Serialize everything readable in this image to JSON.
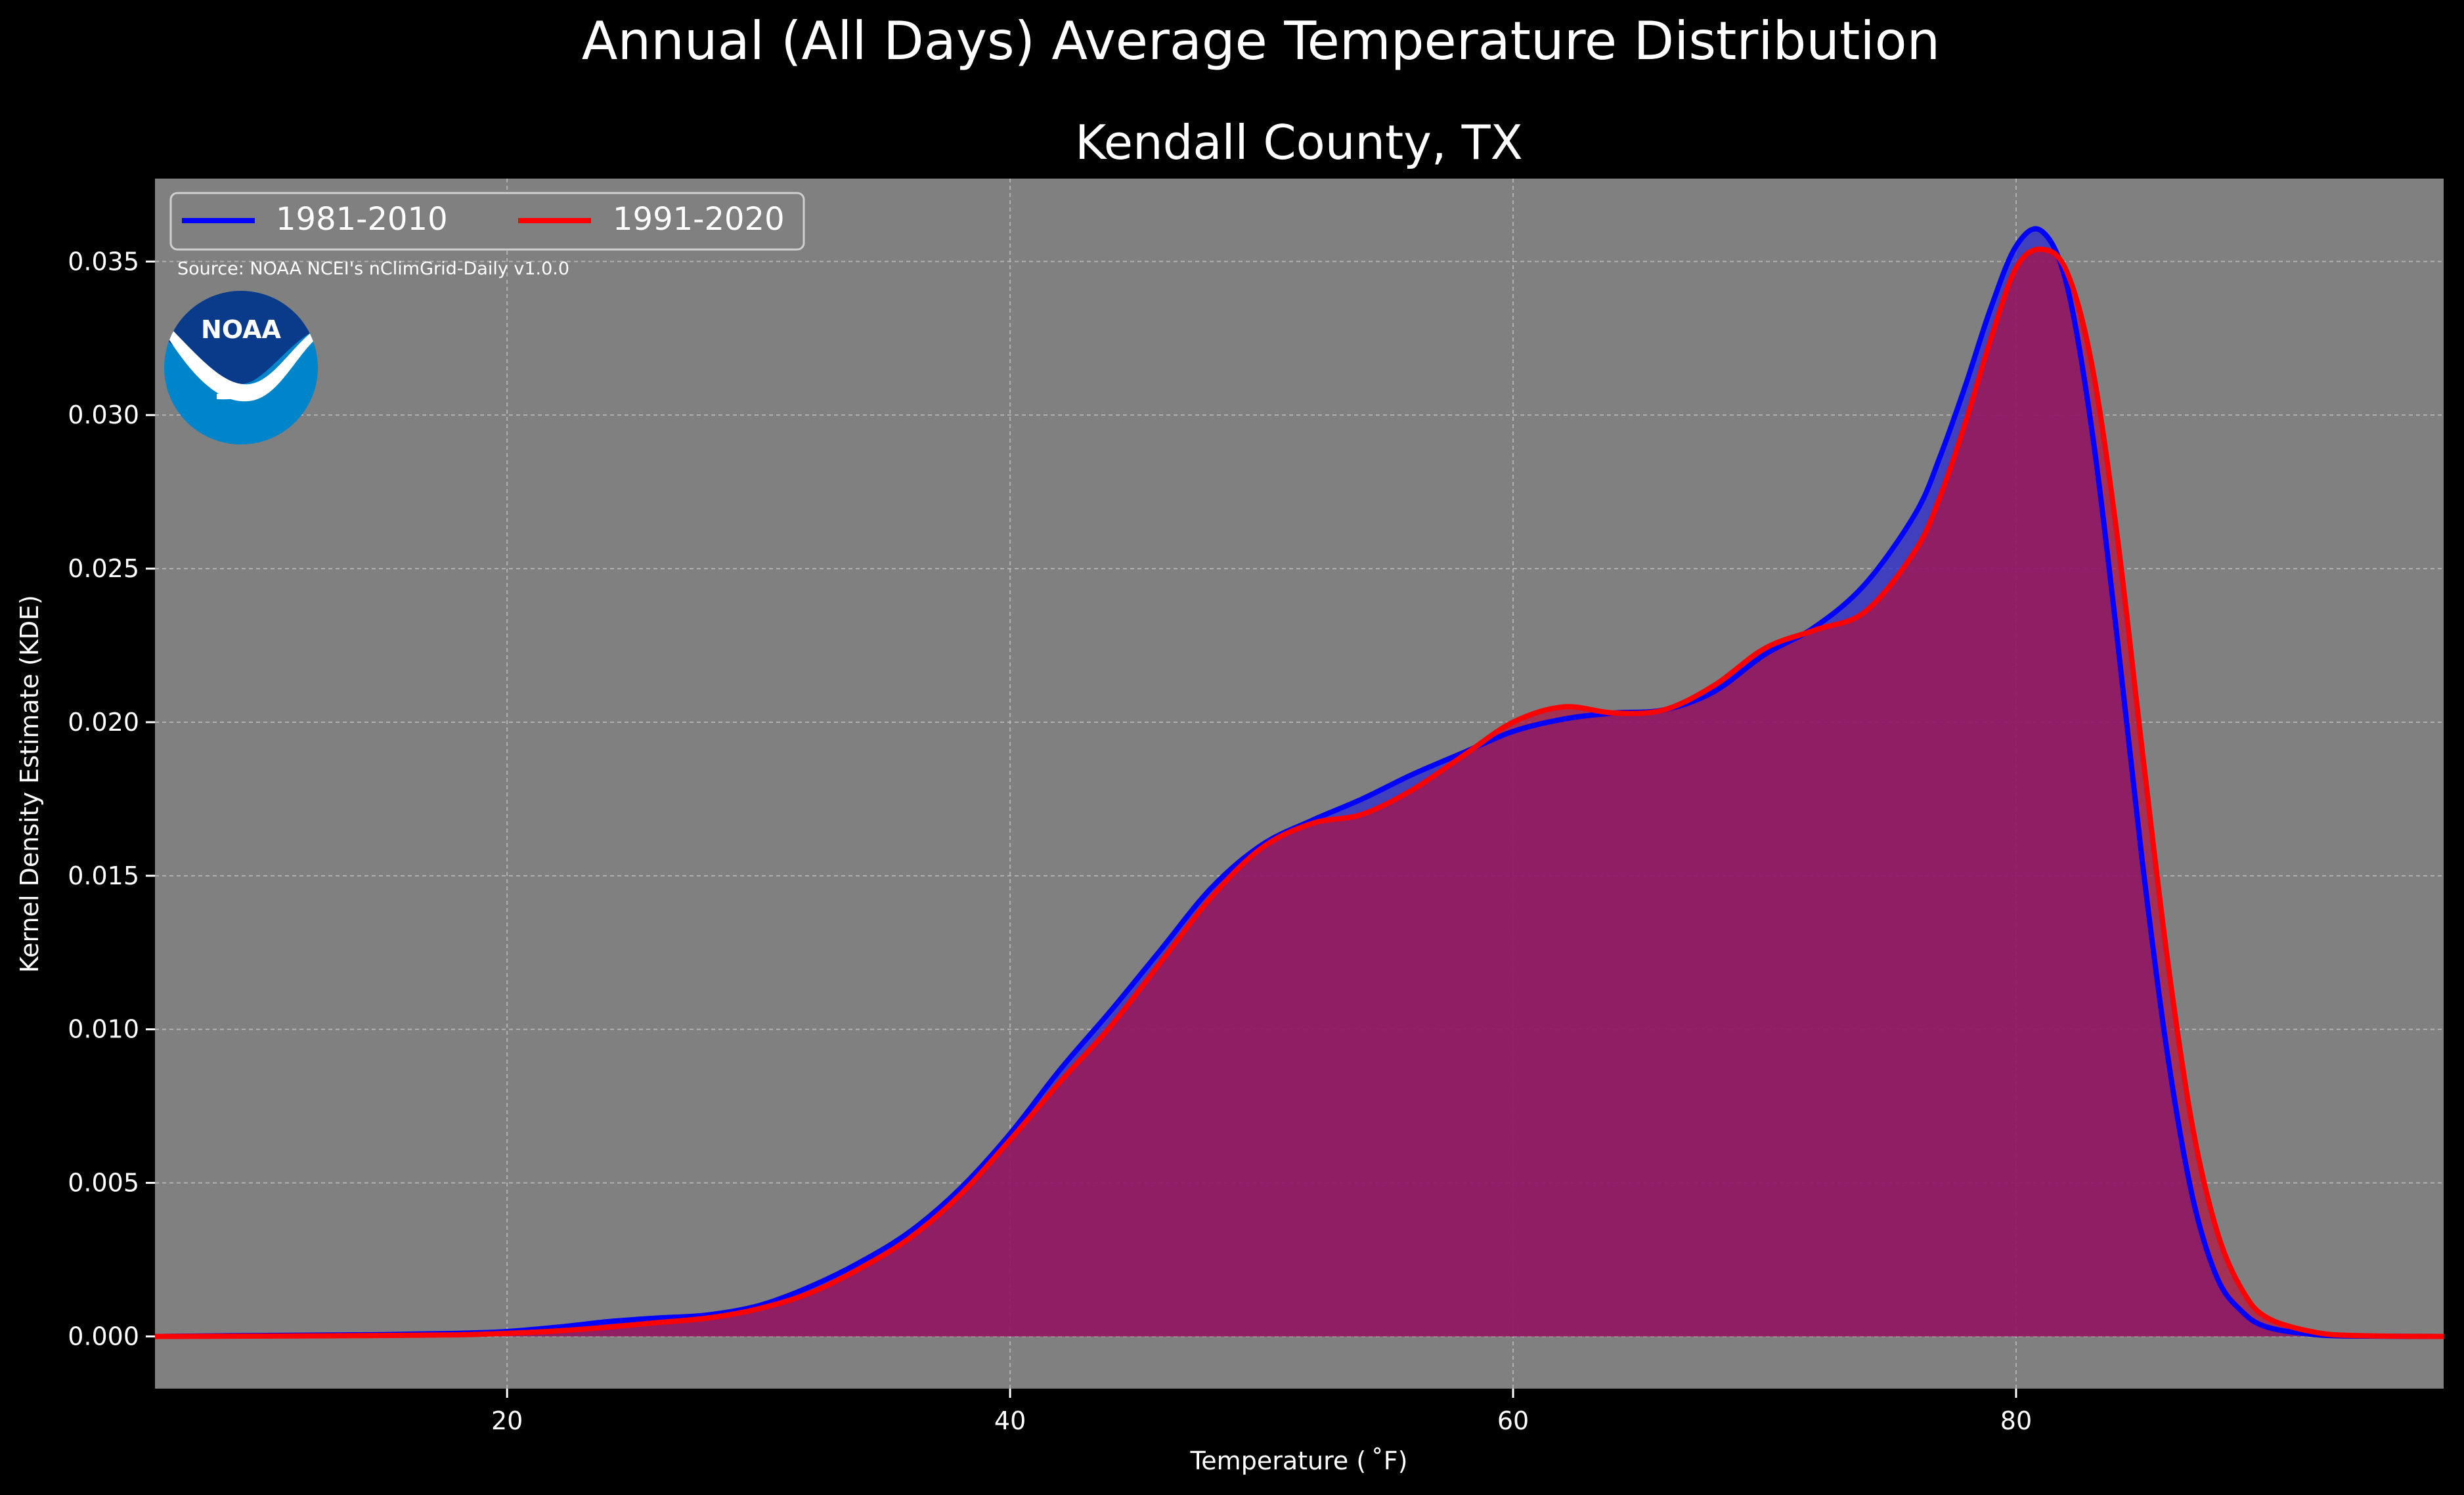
{
  "suptitle": "Annual (All Days) Average Temperature Distribution",
  "source_note": "Source: NOAA NCEI's nClimGrid-Daily v1.0.0",
  "logo": {
    "name": "noaa-logo",
    "text": "NOAA",
    "colors": {
      "top": "#0a3a8a",
      "bottom": "#0085ca",
      "swoosh": "#ffffff"
    }
  },
  "colors": {
    "background": "#000000",
    "plot_bg": "#808080",
    "grid": "#b8b8b8",
    "text": "#ffffff"
  },
  "chart_data": {
    "type": "area",
    "title": "Kendall County, TX",
    "xlabel": "Temperature ($^\\circ$F)",
    "xlabel_display": "Temperature ( ˚F)",
    "ylabel": "Kernel Density Estimate (KDE)",
    "xlim": [
      6,
      97
    ],
    "ylim": [
      -0.0017,
      0.0377
    ],
    "xticks": [
      20,
      40,
      60,
      80
    ],
    "xtick_labels": [
      "20",
      "40",
      "60",
      "80"
    ],
    "yticks": [
      0.0,
      0.005,
      0.01,
      0.015,
      0.02,
      0.025,
      0.03,
      0.035
    ],
    "ytick_labels": [
      "0.000",
      "0.005",
      "0.010",
      "0.015",
      "0.020",
      "0.025",
      "0.030",
      "0.035"
    ],
    "grid": true,
    "legend": {
      "placement": "top-left",
      "ncol": 2
    },
    "series": [
      {
        "name": "1981-2010",
        "color": "#0000ff",
        "fill": "#2b2bd0",
        "x": [
          6,
          10,
          15,
          18,
          20,
          22,
          24,
          26,
          28,
          30,
          32,
          34,
          36,
          38,
          40,
          42,
          44,
          46,
          48,
          50,
          52,
          54,
          56,
          58,
          60,
          62,
          64,
          66,
          68,
          70,
          72,
          74,
          76,
          77,
          78,
          79,
          80,
          81,
          82,
          83,
          84,
          85,
          86,
          87,
          88,
          89,
          90,
          92,
          94,
          97
        ],
        "y": [
          0.0,
          3e-05,
          6e-05,
          0.0001,
          0.00016,
          0.0003,
          0.00048,
          0.0006,
          0.0007,
          0.001,
          0.0016,
          0.0024,
          0.0034,
          0.0048,
          0.0066,
          0.0087,
          0.0106,
          0.0126,
          0.0146,
          0.016,
          0.0168,
          0.0175,
          0.0183,
          0.019,
          0.0197,
          0.0201,
          0.0203,
          0.0204,
          0.021,
          0.0222,
          0.0231,
          0.0245,
          0.0268,
          0.0287,
          0.031,
          0.0335,
          0.0355,
          0.036,
          0.0343,
          0.0296,
          0.0229,
          0.0156,
          0.0093,
          0.0046,
          0.0019,
          0.0008,
          0.0003,
          5e-05,
          1e-05,
          0.0
        ]
      },
      {
        "name": "1991-2020",
        "color": "#ff0000",
        "fill": "#b01040",
        "x": [
          6,
          10,
          15,
          18,
          20,
          22,
          24,
          26,
          28,
          30,
          32,
          34,
          36,
          38,
          40,
          42,
          44,
          46,
          48,
          50,
          52,
          54,
          56,
          58,
          60,
          62,
          64,
          66,
          68,
          70,
          72,
          74,
          76,
          77,
          78,
          79,
          80,
          81,
          82,
          83,
          84,
          85,
          86,
          87,
          88,
          89,
          90,
          92,
          94,
          97
        ],
        "y": [
          0.0,
          1e-05,
          3e-05,
          5e-05,
          0.0001,
          0.00018,
          0.0003,
          0.00045,
          0.0006,
          0.0009,
          0.0014,
          0.0022,
          0.0032,
          0.0046,
          0.0064,
          0.0083,
          0.0101,
          0.0122,
          0.0143,
          0.0159,
          0.0167,
          0.017,
          0.0178,
          0.0189,
          0.02,
          0.0205,
          0.0203,
          0.0204,
          0.0212,
          0.0224,
          0.023,
          0.0236,
          0.0256,
          0.0274,
          0.0298,
          0.0325,
          0.0348,
          0.0354,
          0.0347,
          0.0317,
          0.0262,
          0.0192,
          0.0124,
          0.0069,
          0.0034,
          0.0015,
          0.0006,
          0.00012,
          2e-05,
          0.0
        ]
      }
    ]
  }
}
